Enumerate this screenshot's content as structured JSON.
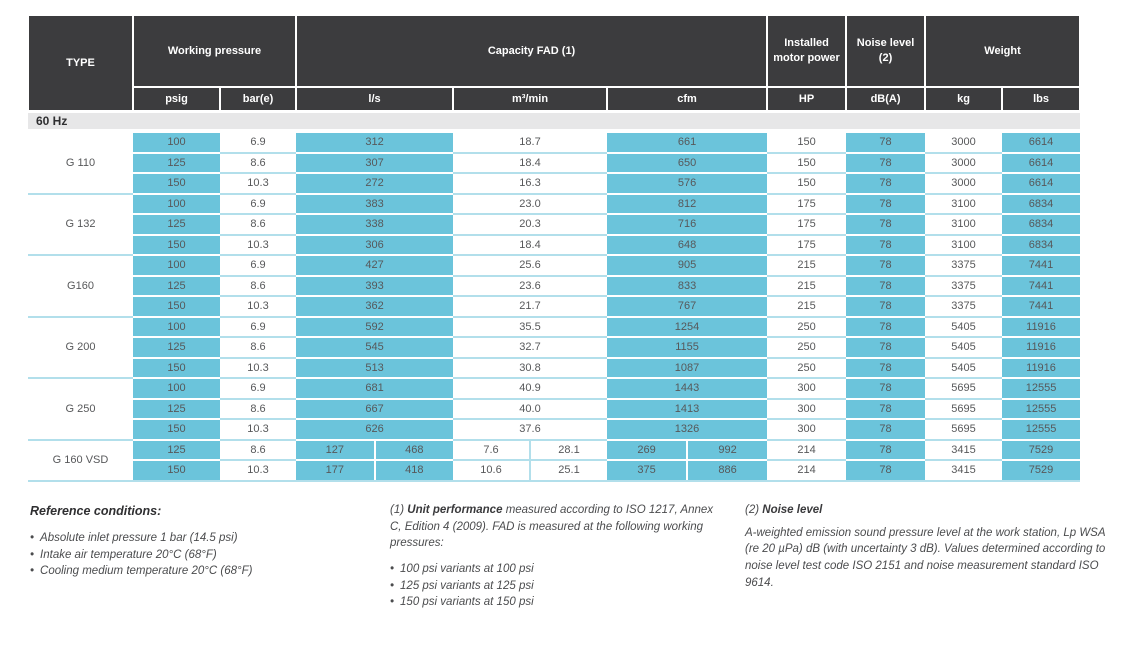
{
  "colors": {
    "header_bg": "#3c3c3e",
    "accent_cyan": "#6bc4db",
    "divider_cyan": "#b2dfeb",
    "section_bg": "#e7e7e8",
    "text_dark": "#2f2f31",
    "text_body": "#57585a"
  },
  "table": {
    "header": {
      "type_label": "TYPE",
      "groups": [
        {
          "label": "Working pressure",
          "colspan": 2
        },
        {
          "label": "Capacity FAD (1)",
          "colspan": 3
        },
        {
          "label": "Installed motor power",
          "colspan": 1
        },
        {
          "label": "Noise level (2)",
          "colspan": 1
        },
        {
          "label": "Weight",
          "colspan": 2
        }
      ],
      "subheaders": [
        "psig",
        "bar(e)",
        "l/s",
        "m³/min",
        "cfm",
        "HP",
        "dB(A)",
        "kg",
        "lbs"
      ]
    },
    "section_label": "60 Hz",
    "groups": [
      {
        "type": "G 110",
        "rows": [
          [
            "100",
            "6.9",
            "312",
            "18.7",
            "661",
            "150",
            "78",
            "3000",
            "6614"
          ],
          [
            "125",
            "8.6",
            "307",
            "18.4",
            "650",
            "150",
            "78",
            "3000",
            "6614"
          ],
          [
            "150",
            "10.3",
            "272",
            "16.3",
            "576",
            "150",
            "78",
            "3000",
            "6614"
          ]
        ]
      },
      {
        "type": "G 132",
        "rows": [
          [
            "100",
            "6.9",
            "383",
            "23.0",
            "812",
            "175",
            "78",
            "3100",
            "6834"
          ],
          [
            "125",
            "8.6",
            "338",
            "20.3",
            "716",
            "175",
            "78",
            "3100",
            "6834"
          ],
          [
            "150",
            "10.3",
            "306",
            "18.4",
            "648",
            "175",
            "78",
            "3100",
            "6834"
          ]
        ]
      },
      {
        "type": "G160",
        "rows": [
          [
            "100",
            "6.9",
            "427",
            "25.6",
            "905",
            "215",
            "78",
            "3375",
            "7441"
          ],
          [
            "125",
            "8.6",
            "393",
            "23.6",
            "833",
            "215",
            "78",
            "3375",
            "7441"
          ],
          [
            "150",
            "10.3",
            "362",
            "21.7",
            "767",
            "215",
            "78",
            "3375",
            "7441"
          ]
        ]
      },
      {
        "type": "G 200",
        "rows": [
          [
            "100",
            "6.9",
            "592",
            "35.5",
            "1254",
            "250",
            "78",
            "5405",
            "11916"
          ],
          [
            "125",
            "8.6",
            "545",
            "32.7",
            "1155",
            "250",
            "78",
            "5405",
            "11916"
          ],
          [
            "150",
            "10.3",
            "513",
            "30.8",
            "1087",
            "250",
            "78",
            "5405",
            "11916"
          ]
        ]
      },
      {
        "type": "G 250",
        "rows": [
          [
            "100",
            "6.9",
            "681",
            "40.9",
            "1443",
            "300",
            "78",
            "5695",
            "12555"
          ],
          [
            "125",
            "8.6",
            "667",
            "40.0",
            "1413",
            "300",
            "78",
            "5695",
            "12555"
          ],
          [
            "150",
            "10.3",
            "626",
            "37.6",
            "1326",
            "300",
            "78",
            "5695",
            "12555"
          ]
        ]
      },
      {
        "type": "G 160 VSD",
        "rows": [
          [
            "125",
            "8.6",
            [
              "127",
              "468"
            ],
            [
              "7.6",
              "28.1"
            ],
            [
              "269",
              "992"
            ],
            "214",
            "78",
            "3415",
            "7529"
          ],
          [
            "150",
            "10.3",
            [
              "177",
              "418"
            ],
            [
              "10.6",
              "25.1"
            ],
            [
              "375",
              "886"
            ],
            "214",
            "78",
            "3415",
            "7529"
          ]
        ]
      }
    ]
  },
  "footnotes": {
    "reference": {
      "title": "Reference conditions:",
      "bullets": [
        "Absolute inlet pressure 1 bar (14.5 psi)",
        "Intake air temperature 20°C (68°F)",
        "Cooling medium temperature 20°C (68°F)"
      ]
    },
    "note1": {
      "prefix": "(1)",
      "title": "Unit performance",
      "body": "measured according to ISO 1217, Annex C, Edition 4 (2009). FAD is measured at the following working pressures:",
      "bullets": [
        "100 psi variants at 100 psi",
        "125 psi variants at 125 psi",
        "150 psi variants at 150 psi"
      ]
    },
    "note2": {
      "prefix": "(2)",
      "title": "Noise level",
      "body": "A-weighted emission sound pressure level at the work station, Lp WSA (re 20 µPa) dB (with uncertainty 3 dB). Values determined according to noise level test code ISO 2151 and noise measurement standard ISO 9614."
    }
  }
}
